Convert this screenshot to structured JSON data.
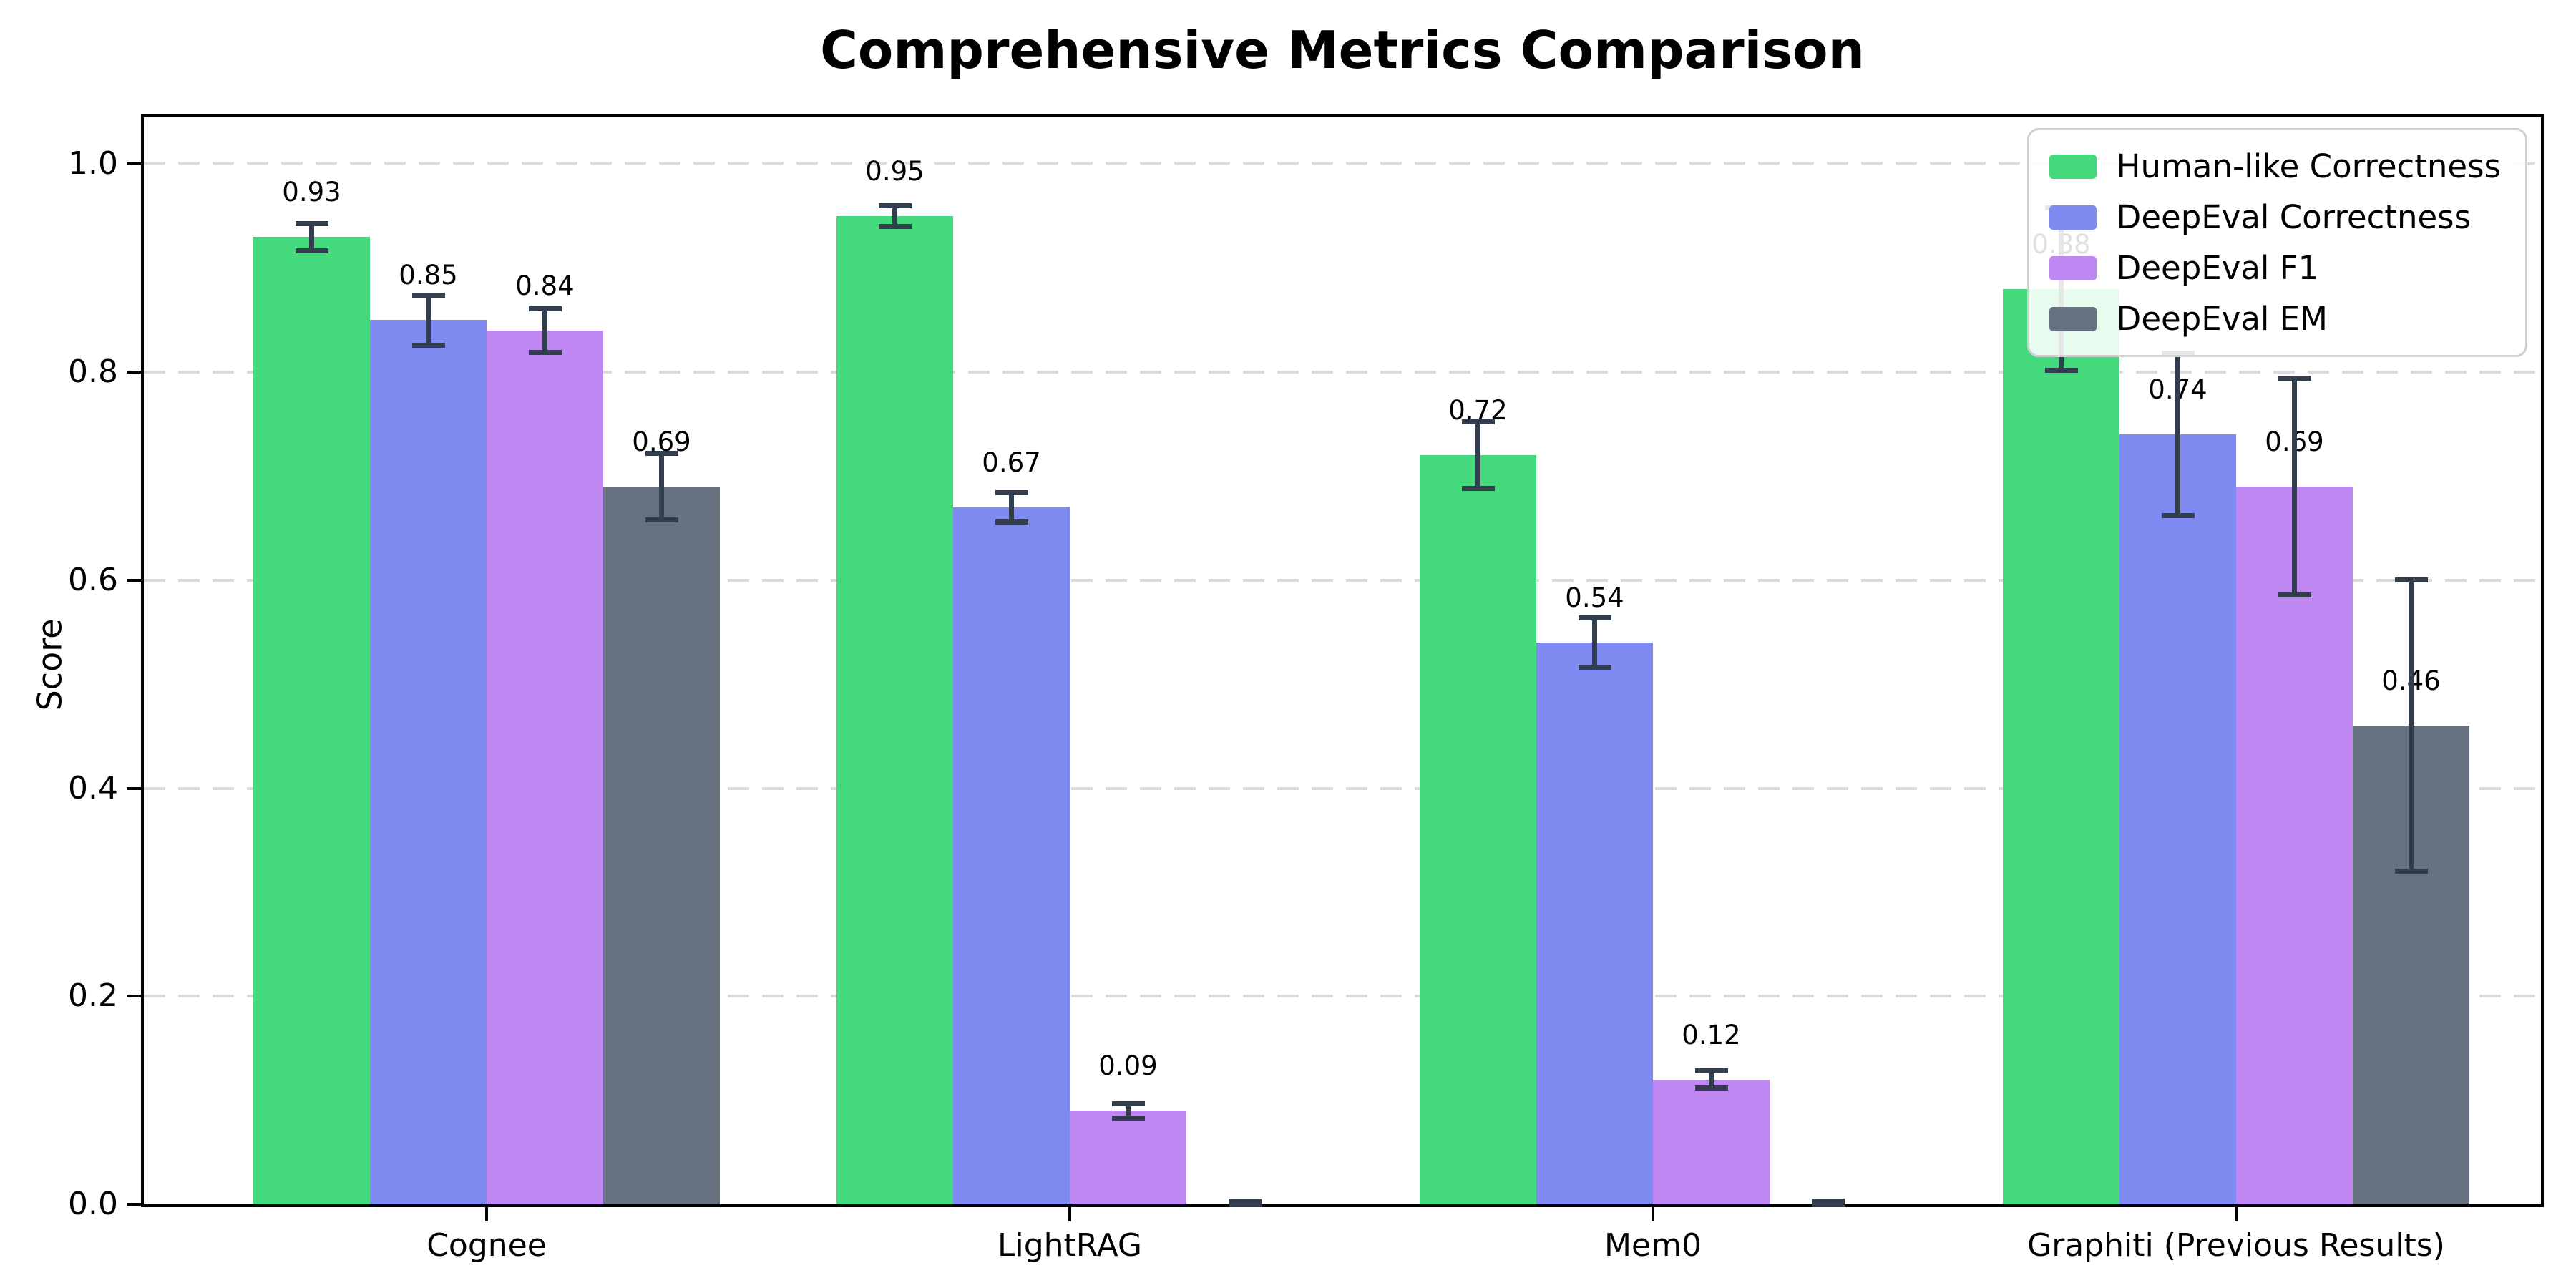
{
  "figure": {
    "background": "#ffffff"
  },
  "chart_data": {
    "type": "bar",
    "title": "Comprehensive Metrics Comparison",
    "ylabel": "Score",
    "xlabel": "",
    "categories": [
      "Cognee",
      "LightRAG",
      "Mem0",
      "Graphiti (Previous Results)"
    ],
    "series": [
      {
        "name": "Human-like Correctness",
        "color": "#45d97e",
        "values": [
          0.93,
          0.95,
          0.72,
          0.88
        ],
        "errors": [
          0.013,
          0.01,
          0.032,
          0.078
        ],
        "bar_labels": [
          "0.93",
          "0.95",
          "0.72",
          "0.88"
        ]
      },
      {
        "name": "DeepEval Correctness",
        "color": "#7f8bf0",
        "values": [
          0.85,
          0.67,
          0.54,
          0.74
        ],
        "errors": [
          0.024,
          0.014,
          0.024,
          0.078
        ],
        "bar_labels": [
          "0.85",
          "0.67",
          "0.54",
          "0.74"
        ]
      },
      {
        "name": "DeepEval F1",
        "color": "#bf87f2",
        "values": [
          0.84,
          0.09,
          0.12,
          0.69
        ],
        "errors": [
          0.021,
          0.007,
          0.008,
          0.104
        ],
        "bar_labels": [
          "0.84",
          "0.09",
          "0.12",
          "0.69"
        ]
      },
      {
        "name": "DeepEval EM",
        "color": "#687180",
        "values": [
          0.69,
          0.0,
          0.0,
          0.46
        ],
        "errors": [
          0.032,
          0.003,
          0.003,
          0.14
        ],
        "bar_labels": [
          "0.69",
          "",
          "",
          "0.46"
        ]
      }
    ],
    "yticks": [
      "0.0",
      "0.2",
      "0.4",
      "0.6",
      "0.8",
      "1.0"
    ],
    "ylim": [
      0.0,
      1.045
    ],
    "grid": "horizontal-dashed",
    "legend_position": "upper-right",
    "error_bar_color": "#323d4e",
    "grid_color": "#dcdcdc"
  }
}
